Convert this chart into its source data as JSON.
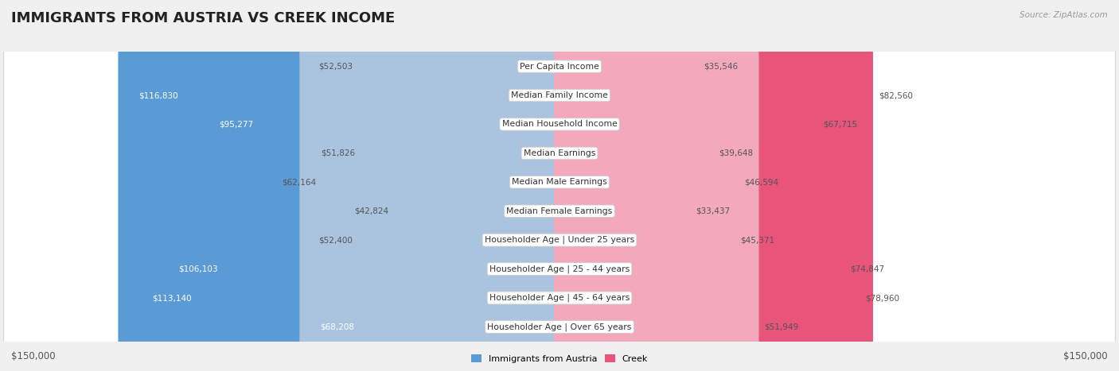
{
  "title": "IMMIGRANTS FROM AUSTRIA VS CREEK INCOME",
  "source": "Source: ZipAtlas.com",
  "categories": [
    "Per Capita Income",
    "Median Family Income",
    "Median Household Income",
    "Median Earnings",
    "Median Male Earnings",
    "Median Female Earnings",
    "Householder Age | Under 25 years",
    "Householder Age | 25 - 44 years",
    "Householder Age | 45 - 64 years",
    "Householder Age | Over 65 years"
  ],
  "austria_values": [
    52503,
    116830,
    95277,
    51826,
    62164,
    42824,
    52400,
    106103,
    113140,
    68208
  ],
  "creek_values": [
    35546,
    82560,
    67715,
    39648,
    46594,
    33437,
    45371,
    74847,
    78960,
    51949
  ],
  "austria_colors": [
    "#aac4e0",
    "#5b9bd5",
    "#6eaad8",
    "#aac4e0",
    "#aac4e0",
    "#aac4e0",
    "#aac4e0",
    "#5b9bd5",
    "#5b9bd5",
    "#aac4e0"
  ],
  "creek_colors": [
    "#f4a8bc",
    "#e8547a",
    "#e8547a",
    "#f4a8bc",
    "#f4a8bc",
    "#f4a8bc",
    "#f4a8bc",
    "#e8547a",
    "#e8547a",
    "#f4a8bc"
  ],
  "austria_label": "Immigrants from Austria",
  "creek_label": "Creek",
  "max_value": 150000,
  "bg_color": "#f0f0f0",
  "row_bg_color": "#ffffff",
  "row_border_color": "#d0d0d0",
  "title_fontsize": 13,
  "label_fontsize": 7.8,
  "value_fontsize": 7.5,
  "axis_label_fontsize": 8.5
}
